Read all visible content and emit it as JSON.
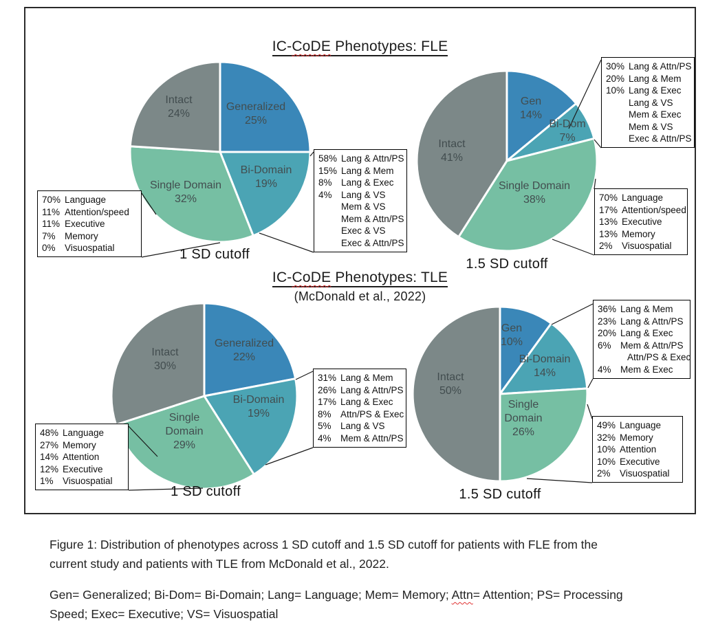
{
  "figure": {
    "titles": {
      "fle": {
        "pre": "IC-",
        "misspelled": "CoDE",
        "post": " Phenotypes: FLE"
      },
      "tle": {
        "pre": "IC-",
        "misspelled": "CoDE",
        "post": " Phenotypes: TLE"
      },
      "tle_subtitle": "(McDonald et al., 2022)"
    }
  },
  "chart_data": [
    {
      "type": "pie",
      "id": "fle-1sd",
      "group": "FLE",
      "title": "IC-CoDE Phenotypes: FLE",
      "cutoff_label": "1 SD cutoff",
      "slices": [
        {
          "label": "Generalized",
          "display": "Generalized",
          "value": 25,
          "color": "#3a87b8"
        },
        {
          "label": "Bi-Domain",
          "display": "Bi-Domain",
          "value": 19,
          "color": "#4ba4b4"
        },
        {
          "label": "Single Domain",
          "display": "Single Domain",
          "value": 32,
          "color": "#76bfa3"
        },
        {
          "label": "Intact",
          "display": "Intact",
          "value": 24,
          "color": "#7c8888"
        }
      ],
      "callouts": [
        {
          "name": "single-domain-breakdown",
          "lines": [
            {
              "pct": "70%",
              "label": "Language"
            },
            {
              "pct": "11%",
              "label": "Attention/speed"
            },
            {
              "pct": "11%",
              "label": "Executive"
            },
            {
              "pct": "7%",
              "label": "Memory"
            },
            {
              "pct": "0%",
              "label": "Visuospatial"
            }
          ]
        },
        {
          "name": "bi-domain-breakdown",
          "lines": [
            {
              "pct": "58%",
              "label": "Lang & Attn/PS"
            },
            {
              "pct": "15%",
              "label": "Lang & Mem"
            },
            {
              "pct": "8%",
              "label": "Lang & Exec"
            },
            {
              "pct": "4%",
              "label": "Lang & VS"
            },
            {
              "pct": "",
              "label": "Mem & VS"
            },
            {
              "pct": "",
              "label": "Mem & Attn/PS"
            },
            {
              "pct": "",
              "label": "Exec & VS"
            },
            {
              "pct": "",
              "label": "Exec & Attn/PS"
            }
          ]
        }
      ]
    },
    {
      "type": "pie",
      "id": "fle-1.5sd",
      "group": "FLE",
      "title": "IC-CoDE Phenotypes: FLE",
      "cutoff_label": "1.5 SD cutoff",
      "slices": [
        {
          "label": "Generalized",
          "display": "Gen",
          "value": 14,
          "color": "#3a87b8"
        },
        {
          "label": "Bi-Domain",
          "display": "Bi-Dom",
          "value": 7,
          "color": "#4ba4b4"
        },
        {
          "label": "Single Domain",
          "display": "Single Domain",
          "value": 38,
          "color": "#76bfa3"
        },
        {
          "label": "Intact",
          "display": "Intact",
          "value": 41,
          "color": "#7c8888"
        }
      ],
      "callouts": [
        {
          "name": "bi-domain-breakdown",
          "lines": [
            {
              "pct": "30%",
              "label": "Lang & Attn/PS"
            },
            {
              "pct": "20%",
              "label": "Lang & Mem"
            },
            {
              "pct": "10%",
              "label": "Lang & Exec"
            },
            {
              "pct": "",
              "label": "Lang & VS"
            },
            {
              "pct": "",
              "label": "Mem & Exec"
            },
            {
              "pct": "",
              "label": "Mem & VS"
            },
            {
              "pct": "",
              "label": "Exec & Attn/PS"
            }
          ]
        },
        {
          "name": "single-domain-breakdown",
          "lines": [
            {
              "pct": "70%",
              "label": "Language"
            },
            {
              "pct": "17%",
              "label": "Attention/speed"
            },
            {
              "pct": "13%",
              "label": "Executive"
            },
            {
              "pct": "13%",
              "label": "Memory"
            },
            {
              "pct": "2%",
              "label": "Visuospatial"
            }
          ]
        }
      ]
    },
    {
      "type": "pie",
      "id": "tle-1sd",
      "group": "TLE",
      "title": "IC-CoDE Phenotypes: TLE",
      "subtitle": "(McDonald et al., 2022)",
      "cutoff_label": "1 SD cutoff",
      "slices": [
        {
          "label": "Generalized",
          "display": "Generalized",
          "value": 22,
          "color": "#3a87b8"
        },
        {
          "label": "Bi-Domain",
          "display": "Bi-Domain",
          "value": 19,
          "color": "#4ba4b4"
        },
        {
          "label": "Single Domain",
          "display": "Single\nDomain",
          "value": 29,
          "color": "#76bfa3"
        },
        {
          "label": "Intact",
          "display": "Intact",
          "value": 30,
          "color": "#7c8888"
        }
      ],
      "callouts": [
        {
          "name": "single-domain-breakdown",
          "lines": [
            {
              "pct": "48%",
              "label": "Language"
            },
            {
              "pct": "27%",
              "label": "Memory"
            },
            {
              "pct": "14%",
              "label": "Attention"
            },
            {
              "pct": "12%",
              "label": "Executive"
            },
            {
              "pct": "1%",
              "label": "Visuospatial"
            }
          ]
        },
        {
          "name": "bi-domain-breakdown",
          "lines": [
            {
              "pct": "31%",
              "label": "Lang & Mem"
            },
            {
              "pct": "26%",
              "label": "Lang & Attn/PS"
            },
            {
              "pct": "17%",
              "label": "Lang & Exec"
            },
            {
              "pct": "8%",
              "label": "Attn/PS & Exec"
            },
            {
              "pct": "5%",
              "label": "Lang & VS"
            },
            {
              "pct": "4%",
              "label": "Mem & Attn/PS"
            }
          ]
        }
      ]
    },
    {
      "type": "pie",
      "id": "tle-1.5sd",
      "group": "TLE",
      "title": "IC-CoDE Phenotypes: TLE",
      "cutoff_label": "1.5 SD cutoff",
      "slices": [
        {
          "label": "Generalized",
          "display": "Gen",
          "value": 10,
          "color": "#3a87b8"
        },
        {
          "label": "Bi-Domain",
          "display": "Bi-Domain",
          "value": 14,
          "color": "#4ba4b4"
        },
        {
          "label": "Single Domain",
          "display": "Single\nDomain",
          "value": 26,
          "color": "#76bfa3"
        },
        {
          "label": "Intact",
          "display": "Intact",
          "value": 50,
          "color": "#7c8888"
        }
      ],
      "callouts": [
        {
          "name": "bi-domain-breakdown",
          "lines": [
            {
              "pct": "36%",
              "label": "Lang & Mem"
            },
            {
              "pct": "23%",
              "label": "Lang & Attn/PS"
            },
            {
              "pct": "20%",
              "label": "Lang & Exec"
            },
            {
              "pct": "6%",
              "label": "Mem & Attn/PS"
            },
            {
              "pct": "",
              "label": "Attn/PS & Exec",
              "indent": true
            },
            {
              "pct": "4%",
              "label": "Mem & Exec"
            }
          ]
        },
        {
          "name": "single-domain-breakdown",
          "lines": [
            {
              "pct": "49%",
              "label": "Language"
            },
            {
              "pct": "32%",
              "label": "Memory"
            },
            {
              "pct": "10%",
              "label": "Attention"
            },
            {
              "pct": "10%",
              "label": "Executive"
            },
            {
              "pct": "2%",
              "label": "Visuospatial"
            }
          ]
        }
      ]
    }
  ],
  "caption": {
    "text": "Figure 1: Distribution of phenotypes across 1 SD cutoff and 1.5 SD cutoff for patients with FLE from the current study and patients with TLE from McDonald et al., 2022.",
    "legend": {
      "pre": "Gen= Generalized; Bi-Dom= Bi-Domain; Lang= Language; Mem= Memory; ",
      "misspelled": "Attn",
      "post": "= Attention; PS= Processing Speed; Exec= Executive; VS= Visuospatial"
    }
  }
}
